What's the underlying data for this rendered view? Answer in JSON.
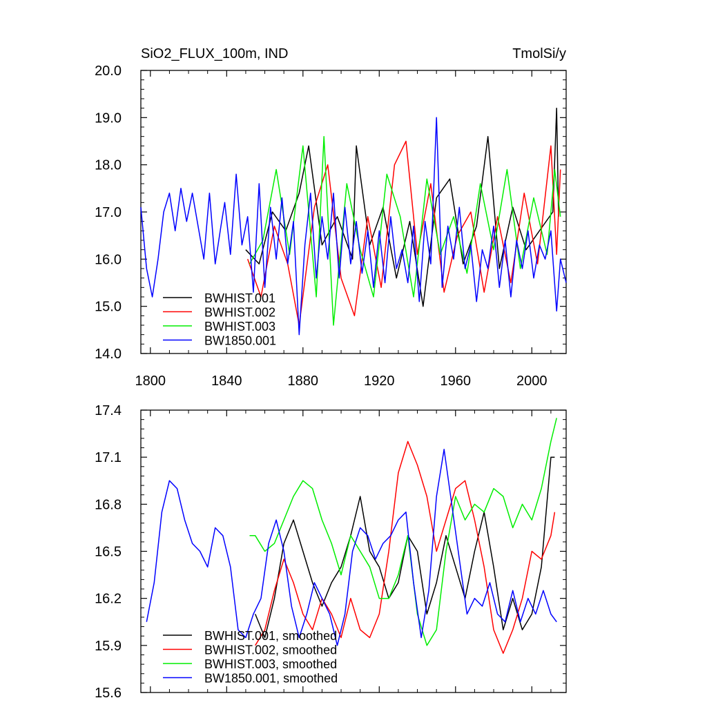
{
  "chart_data": [
    {
      "type": "line",
      "title_left": "SiO2_FLUX_100m, IND",
      "title_right": "TmolSi/y",
      "xlim": [
        1795,
        2018
      ],
      "ylim": [
        14.0,
        20.0
      ],
      "x_ticks": [
        1800,
        1840,
        1880,
        1920,
        1960,
        2000
      ],
      "x_tick_labels": [
        "1800",
        "1840",
        "1880",
        "1920",
        "1960",
        "2000"
      ],
      "y_ticks": [
        14.0,
        15.0,
        16.0,
        17.0,
        18.0,
        19.0,
        20.0
      ],
      "y_tick_labels": [
        "14.0",
        "15.0",
        "16.0",
        "17.0",
        "18.0",
        "19.0",
        "20.0"
      ],
      "legend_position": "bottom-left",
      "series": [
        {
          "name": "BWHIST.001",
          "color": "#000000",
          "x": [
            1850,
            1857,
            1864,
            1871,
            1878,
            1883,
            1890,
            1898,
            1906,
            1908,
            1915,
            1922,
            1929,
            1936,
            1943,
            1950,
            1957,
            1964,
            1971,
            1977,
            1983,
            1990,
            1997,
            2004,
            2011,
            2013,
            2014
          ],
          "y": [
            16.2,
            15.9,
            17.0,
            16.6,
            17.4,
            18.4,
            16.3,
            16.9,
            16.0,
            18.4,
            16.3,
            17.1,
            15.6,
            16.8,
            15.0,
            17.3,
            17.7,
            15.9,
            16.7,
            18.6,
            15.8,
            17.1,
            16.2,
            16.6,
            17.0,
            19.2,
            16.9
          ]
        },
        {
          "name": "BWHIST.002",
          "color": "#ff0000",
          "x": [
            1851,
            1858,
            1865,
            1872,
            1878,
            1886,
            1893,
            1900,
            1907,
            1914,
            1921,
            1928,
            1934,
            1940,
            1947,
            1954,
            1961,
            1968,
            1975,
            1982,
            1989,
            1996,
            2003,
            2010,
            2013,
            2015
          ],
          "y": [
            16.0,
            15.2,
            16.7,
            15.9,
            14.6,
            17.1,
            18.0,
            15.6,
            14.8,
            16.9,
            15.4,
            18.0,
            18.5,
            16.1,
            17.6,
            15.3,
            16.5,
            17.0,
            15.3,
            16.9,
            15.5,
            17.4,
            15.9,
            18.4,
            16.1,
            17.9
          ]
        },
        {
          "name": "BWHIST.003",
          "color": "#00ee00",
          "x": [
            1852,
            1859,
            1866,
            1873,
            1880,
            1887,
            1891,
            1896,
            1903,
            1910,
            1917,
            1924,
            1931,
            1938,
            1945,
            1952,
            1959,
            1966,
            1973,
            1980,
            1987,
            1994,
            2001,
            2008,
            2012,
            2015
          ],
          "y": [
            15.9,
            16.4,
            17.9,
            16.1,
            18.4,
            15.2,
            18.6,
            14.6,
            17.6,
            16.2,
            15.2,
            17.8,
            16.9,
            15.2,
            17.7,
            16.1,
            16.9,
            15.7,
            17.6,
            16.2,
            17.9,
            15.8,
            17.3,
            16.1,
            17.9,
            16.9
          ]
        },
        {
          "name": "BW1850.001",
          "color": "#0000ff",
          "x": [
            1795,
            1798,
            1801,
            1804,
            1807,
            1810,
            1813,
            1816,
            1819,
            1822,
            1825,
            1828,
            1831,
            1834,
            1837,
            1839,
            1842,
            1845,
            1848,
            1851,
            1854,
            1857,
            1860,
            1863,
            1866,
            1869,
            1872,
            1875,
            1878,
            1881,
            1884,
            1887,
            1890,
            1893,
            1896,
            1899,
            1902,
            1905,
            1908,
            1911,
            1914,
            1917,
            1920,
            1923,
            1926,
            1929,
            1932,
            1935,
            1938,
            1941,
            1944,
            1947,
            1950,
            1953,
            1956,
            1959,
            1962,
            1965,
            1968,
            1971,
            1974,
            1977,
            1980,
            1983,
            1986,
            1989,
            1992,
            1995,
            1998,
            2001,
            2004,
            2007,
            2010,
            2013,
            2015,
            2018
          ],
          "y": [
            17.1,
            15.8,
            15.2,
            16.0,
            17.0,
            17.4,
            16.6,
            17.5,
            16.8,
            17.4,
            16.7,
            16.0,
            17.4,
            15.9,
            16.7,
            17.2,
            16.1,
            17.8,
            16.3,
            16.9,
            15.3,
            17.6,
            15.4,
            17.1,
            16.0,
            17.3,
            15.9,
            16.8,
            14.4,
            16.3,
            17.4,
            15.6,
            16.9,
            16.0,
            17.4,
            15.6,
            17.1,
            15.9,
            16.8,
            15.7,
            16.6,
            15.4,
            16.6,
            15.5,
            16.9,
            15.8,
            16.2,
            15.5,
            16.7,
            15.1,
            16.8,
            15.9,
            19.0,
            15.4,
            16.7,
            16.0,
            17.1,
            15.8,
            16.3,
            15.1,
            16.2,
            15.8,
            16.7,
            15.4,
            16.4,
            15.2,
            16.4,
            15.8,
            16.6,
            15.6,
            16.3,
            16.0,
            16.6,
            14.9,
            16.0,
            15.5
          ]
        }
      ]
    },
    {
      "type": "line",
      "xlim": [
        1795,
        2018
      ],
      "ylim": [
        15.6,
        17.4
      ],
      "x_ticks": [
        1800,
        1840,
        1880,
        1920,
        1960,
        2000
      ],
      "y_ticks": [
        15.6,
        15.9,
        16.2,
        16.5,
        16.8,
        17.1,
        17.4
      ],
      "y_tick_labels": [
        "15.6",
        "15.9",
        "16.2",
        "16.5",
        "16.8",
        "17.1",
        "17.4"
      ],
      "legend_position": "bottom-left",
      "series": [
        {
          "name": "BWHIST.001, smoothed",
          "color": "#000000",
          "x": [
            1855,
            1860,
            1865,
            1870,
            1875,
            1880,
            1885,
            1890,
            1895,
            1900,
            1905,
            1910,
            1915,
            1920,
            1925,
            1930,
            1935,
            1940,
            1945,
            1950,
            1955,
            1960,
            1965,
            1970,
            1975,
            1980,
            1985,
            1990,
            1995,
            2000,
            2005,
            2010,
            2012
          ],
          "y": [
            16.1,
            15.95,
            16.2,
            16.55,
            16.7,
            16.5,
            16.3,
            16.15,
            16.3,
            16.4,
            16.6,
            16.85,
            16.5,
            16.4,
            16.2,
            16.3,
            16.6,
            16.5,
            16.1,
            16.3,
            16.6,
            16.4,
            16.2,
            16.5,
            16.75,
            16.4,
            16.0,
            16.2,
            16.0,
            16.1,
            16.4,
            17.1,
            17.1
          ]
        },
        {
          "name": "BWHIST.002, smoothed",
          "color": "#ff0000",
          "x": [
            1855,
            1860,
            1865,
            1870,
            1875,
            1880,
            1885,
            1890,
            1895,
            1900,
            1905,
            1910,
            1915,
            1920,
            1925,
            1930,
            1935,
            1940,
            1945,
            1950,
            1955,
            1960,
            1965,
            1970,
            1975,
            1980,
            1985,
            1990,
            1995,
            2000,
            2005,
            2010,
            2012
          ],
          "y": [
            15.9,
            16.0,
            16.25,
            16.45,
            16.3,
            16.1,
            16.0,
            16.2,
            16.1,
            15.95,
            16.2,
            16.0,
            15.95,
            16.1,
            16.5,
            17.0,
            17.2,
            17.05,
            16.85,
            16.5,
            16.7,
            16.9,
            16.95,
            16.7,
            16.4,
            16.0,
            15.85,
            16.0,
            16.2,
            16.5,
            16.45,
            16.6,
            16.75
          ]
        },
        {
          "name": "BWHIST.003, smoothed",
          "color": "#00ee00",
          "x": [
            1852,
            1855,
            1860,
            1865,
            1870,
            1875,
            1880,
            1885,
            1890,
            1895,
            1900,
            1905,
            1910,
            1915,
            1920,
            1925,
            1930,
            1935,
            1940,
            1945,
            1950,
            1955,
            1960,
            1965,
            1970,
            1975,
            1980,
            1985,
            1990,
            1995,
            2000,
            2005,
            2010,
            2013
          ],
          "y": [
            16.6,
            16.6,
            16.5,
            16.55,
            16.7,
            16.85,
            16.95,
            16.9,
            16.7,
            16.55,
            16.35,
            16.6,
            16.5,
            16.4,
            16.2,
            16.2,
            16.35,
            16.6,
            16.1,
            15.9,
            16.0,
            16.5,
            16.85,
            16.7,
            16.8,
            16.75,
            16.9,
            16.85,
            16.65,
            16.8,
            16.7,
            16.9,
            17.2,
            17.35
          ]
        },
        {
          "name": "BW1850.001, smoothed",
          "color": "#0000ff",
          "x": [
            1798,
            1802,
            1806,
            1810,
            1814,
            1818,
            1822,
            1826,
            1830,
            1834,
            1838,
            1842,
            1846,
            1850,
            1854,
            1858,
            1862,
            1866,
            1870,
            1874,
            1878,
            1882,
            1886,
            1890,
            1894,
            1898,
            1902,
            1906,
            1910,
            1914,
            1918,
            1922,
            1926,
            1930,
            1934,
            1938,
            1942,
            1946,
            1950,
            1954,
            1958,
            1962,
            1966,
            1970,
            1974,
            1978,
            1982,
            1986,
            1990,
            1994,
            1998,
            2002,
            2006,
            2010,
            2013
          ],
          "y": [
            16.05,
            16.3,
            16.75,
            16.95,
            16.9,
            16.7,
            16.55,
            16.5,
            16.4,
            16.65,
            16.6,
            16.4,
            16.0,
            15.95,
            16.1,
            16.2,
            16.55,
            16.7,
            16.5,
            16.15,
            15.95,
            16.1,
            16.3,
            16.2,
            16.1,
            15.9,
            16.1,
            16.5,
            16.65,
            16.6,
            16.45,
            16.55,
            16.6,
            16.7,
            16.75,
            16.3,
            15.95,
            16.25,
            16.85,
            17.15,
            16.8,
            16.45,
            16.1,
            16.2,
            16.15,
            16.3,
            16.1,
            16.05,
            16.25,
            16.05,
            16.2,
            16.1,
            16.25,
            16.1,
            16.05
          ]
        }
      ]
    }
  ]
}
